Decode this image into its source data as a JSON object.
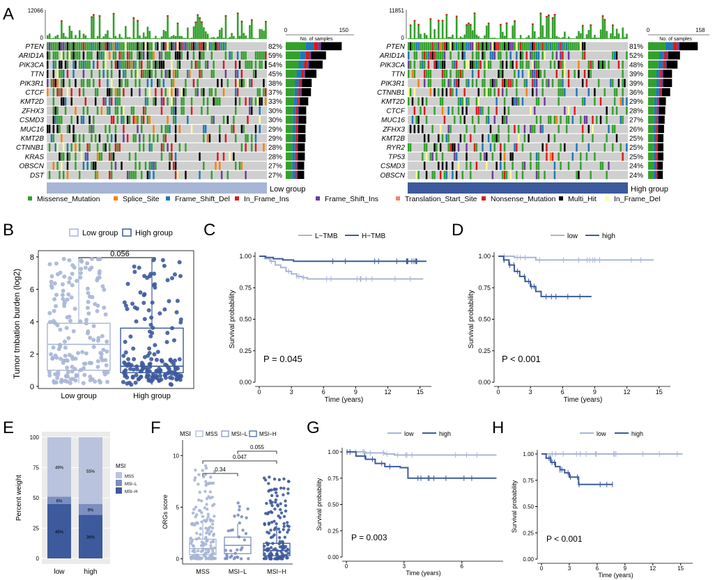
{
  "colors": {
    "missense": "#33a02c",
    "splice": "#ff7f00",
    "frame_shift_del": "#1f78b4",
    "in_frame_ins": "#e31a1c",
    "frame_shift_ins": "#6a3d9a",
    "translation_start": "#fb8072",
    "nonsense": "#d7191c",
    "multi_hit": "#000000",
    "in_frame_del": "#ffff99",
    "grid_bg": "#cfcfcf",
    "low": "#a7b6d6",
    "high": "#3c5a9c"
  },
  "panel_letters": {
    "A": "A",
    "B": "B",
    "C": "C",
    "D": "D",
    "E": "E",
    "F": "F",
    "G": "G",
    "H": "H"
  },
  "legend_mutation": [
    "Missense_Mutation",
    "Splice_Site",
    "Frame_Shift_Del",
    "In_Frame_Ins",
    "Frame_Shift_Ins",
    "Translation_Start_Site",
    "Nonsense_Mutation",
    "Multi_Hit",
    "In_Frame_Del"
  ],
  "chart_data": [
    {
      "panel": "A-left",
      "type": "oncoplot",
      "group_label": "Low group",
      "tmb_axis_max": "12066",
      "tmb_axis_min": "0",
      "samples_axis": {
        "min": "0",
        "max": "150",
        "label": "No. of samples"
      },
      "genes": [
        "PTEN",
        "ARID1A",
        "PIK3CA",
        "TTN",
        "PIK3R1",
        "CTCF",
        "KMT2D",
        "ZFHX3",
        "CSMD3",
        "MUC16",
        "KMT2B",
        "CTNNB1",
        "KRAS",
        "OBSCN",
        "DST"
      ],
      "percents": [
        "82%",
        "59%",
        "54%",
        "45%",
        "38%",
        "37%",
        "33%",
        "30%",
        "30%",
        "29%",
        "29%",
        "28%",
        "28%",
        "27%",
        "27%"
      ],
      "pct_values": [
        82,
        59,
        54,
        45,
        38,
        37,
        33,
        30,
        30,
        29,
        29,
        28,
        28,
        27,
        27
      ]
    },
    {
      "panel": "A-right",
      "type": "oncoplot",
      "group_label": "High group",
      "tmb_axis_max": "11851",
      "tmb_axis_min": "0",
      "samples_axis": {
        "min": "0",
        "max": "158",
        "label": "No. of samples"
      },
      "genes": [
        "PTEN",
        "ARID1A",
        "PIK3CA",
        "TTN",
        "PIK3R1",
        "CTNNB1",
        "KMT2D",
        "CTCF",
        "MUC16",
        "ZFHX3",
        "KMT2B",
        "RYR2",
        "TP53",
        "CSMD3",
        "OBSCN"
      ],
      "percents": [
        "81%",
        "52%",
        "48%",
        "39%",
        "39%",
        "36%",
        "29%",
        "28%",
        "27%",
        "26%",
        "25%",
        "25%",
        "25%",
        "24%",
        "24%"
      ],
      "pct_values": [
        81,
        52,
        48,
        39,
        39,
        36,
        29,
        28,
        27,
        26,
        25,
        25,
        25,
        24,
        24
      ]
    },
    {
      "panel": "B",
      "type": "boxplot",
      "legend": [
        "Low group",
        "High group"
      ],
      "ylabel": "Tumor tmbation burden (log2)",
      "yticks": [
        "0",
        "2",
        "4",
        "6",
        "8"
      ],
      "ylim": [
        0,
        8.3
      ],
      "categories": [
        "Low group",
        "High group"
      ],
      "pvalue": "0.056",
      "boxes": [
        {
          "q1": 1.0,
          "median": 2.6,
          "q3": 3.9,
          "min": 0.2,
          "max": 7.9
        },
        {
          "q1": 0.85,
          "median": 1.25,
          "q3": 3.6,
          "min": 0.1,
          "max": 7.9
        }
      ]
    },
    {
      "panel": "C",
      "type": "line",
      "legend": [
        "L−TMB",
        "H−TMB"
      ],
      "xlabel": "Time (years)",
      "ylabel": "Survival probability",
      "xticks": [
        "0",
        "3",
        "6",
        "9",
        "12",
        "15"
      ],
      "yticks": [
        "0.00",
        "0.25",
        "0.50",
        "0.75",
        "1.00"
      ],
      "xlim": [
        0,
        15.8
      ],
      "ylim": [
        0,
        1
      ],
      "pvalue": "P = 0.045",
      "series": [
        {
          "name": "L−TMB",
          "x": [
            0,
            0.5,
            1,
            1.5,
            2,
            2.5,
            3,
            3.5,
            4,
            4.5,
            15.3
          ],
          "y": [
            1,
            0.98,
            0.96,
            0.93,
            0.91,
            0.88,
            0.86,
            0.84,
            0.83,
            0.82,
            0.82
          ]
        },
        {
          "name": "H−TMB",
          "x": [
            0,
            0.6,
            1.3,
            2.2,
            3.2,
            15.6
          ],
          "y": [
            1,
            0.99,
            0.98,
            0.97,
            0.96,
            0.96
          ]
        }
      ]
    },
    {
      "panel": "D",
      "type": "line",
      "legend": [
        "low",
        "high"
      ],
      "xlabel": "Time (years)",
      "ylabel": "Survival probability",
      "xticks": [
        "0",
        "3",
        "6",
        "9",
        "12",
        "15"
      ],
      "yticks": [
        "0.00",
        "0.25",
        "0.50",
        "0.75",
        "1.00"
      ],
      "xlim": [
        0,
        15.8
      ],
      "ylim": [
        0,
        1
      ],
      "pvalue": "P < 0.001",
      "series": [
        {
          "name": "low",
          "x": [
            0,
            1.5,
            3.5,
            14.5
          ],
          "y": [
            1,
            0.99,
            0.97,
            0.97
          ]
        },
        {
          "name": "high",
          "x": [
            0,
            0.5,
            1,
            1.5,
            2,
            2.5,
            3,
            3.5,
            4,
            8.7
          ],
          "y": [
            1,
            0.97,
            0.93,
            0.88,
            0.84,
            0.8,
            0.76,
            0.72,
            0.68,
            0.68
          ]
        }
      ]
    },
    {
      "panel": "E",
      "type": "bar",
      "stacked": true,
      "ylabel": "Percent weight",
      "categories": [
        "low",
        "high"
      ],
      "yticks": [
        "0",
        "25",
        "50",
        "75",
        "100"
      ],
      "ylim": [
        0,
        100
      ],
      "legend_title": "MSI",
      "legend": [
        "MSS",
        "MSI−L",
        "MSI−H"
      ],
      "series": [
        {
          "name": "MSI−H",
          "values": [
            45,
            36
          ]
        },
        {
          "name": "MSI−L",
          "values": [
            6,
            9
          ]
        },
        {
          "name": "MSS",
          "values": [
            49,
            55
          ]
        }
      ],
      "labels": {
        "MSI−H": [
          "45%",
          "36%"
        ],
        "MSI−L": [
          "6%",
          "9%"
        ],
        "MSS": [
          "49%",
          "55%"
        ]
      }
    },
    {
      "panel": "F",
      "type": "boxplot",
      "legend_title": "MSI",
      "legend": [
        "MSS",
        "MSI−L",
        "MSI−H"
      ],
      "ylabel": "ORGs score",
      "categories": [
        "MSS",
        "MSI−L",
        "MSI−H"
      ],
      "yticks": [
        "0",
        "5",
        "10"
      ],
      "ylim": [
        -0.5,
        11.5
      ],
      "comparisons": [
        {
          "from": 0,
          "to": 1,
          "p": "0.34"
        },
        {
          "from": 0,
          "to": 2,
          "p": "0.047"
        },
        {
          "from": 1,
          "to": 2,
          "p": "0.055"
        }
      ],
      "boxes": [
        {
          "q1": 0.4,
          "median": 1.0,
          "q3": 1.9,
          "min": 0,
          "max": 3.5
        },
        {
          "q1": 0.5,
          "median": 1.3,
          "q3": 2.1,
          "min": 0,
          "max": 3.4
        },
        {
          "q1": 0.3,
          "median": 0.8,
          "q3": 1.5,
          "min": 0,
          "max": 3.2
        }
      ]
    },
    {
      "panel": "G",
      "type": "line",
      "legend": [
        "low",
        "high"
      ],
      "xlabel": "Time (years)",
      "ylabel": "Survival probability",
      "xticks": [
        "0",
        "3",
        "6"
      ],
      "yticks": [
        "0.00",
        "0.25",
        "0.50",
        "0.75",
        "1.00"
      ],
      "xlim": [
        0,
        8
      ],
      "ylim": [
        0,
        1
      ],
      "pvalue": "P = 0.003",
      "series": [
        {
          "name": "low",
          "x": [
            0,
            1,
            2,
            2.5,
            7.8
          ],
          "y": [
            1,
            0.99,
            0.98,
            0.97,
            0.97
          ]
        },
        {
          "name": "high",
          "x": [
            0,
            0.5,
            1,
            1.5,
            2,
            2.8,
            3.2,
            7.8
          ],
          "y": [
            1,
            0.96,
            0.93,
            0.89,
            0.86,
            0.85,
            0.75,
            0.75
          ]
        }
      ]
    },
    {
      "panel": "H",
      "type": "line",
      "legend": [
        "low",
        "high"
      ],
      "xlabel": "Time (years)",
      "ylabel": "Survival probability",
      "xticks": [
        "0",
        "3",
        "6",
        "9",
        "12",
        "15"
      ],
      "yticks": [
        "0.00",
        "0.25",
        "0.50",
        "0.75",
        "1.00"
      ],
      "xlim": [
        0,
        16
      ],
      "ylim": [
        0,
        1
      ],
      "pvalue": "P < 0.001",
      "series": [
        {
          "name": "low",
          "x": [
            0,
            2,
            15.2
          ],
          "y": [
            1,
            1,
            1
          ]
        },
        {
          "name": "high",
          "x": [
            0,
            0.5,
            1,
            1.5,
            2,
            2.5,
            3,
            4,
            7.7
          ],
          "y": [
            1,
            0.96,
            0.92,
            0.88,
            0.85,
            0.82,
            0.78,
            0.71,
            0.71
          ]
        }
      ]
    }
  ]
}
